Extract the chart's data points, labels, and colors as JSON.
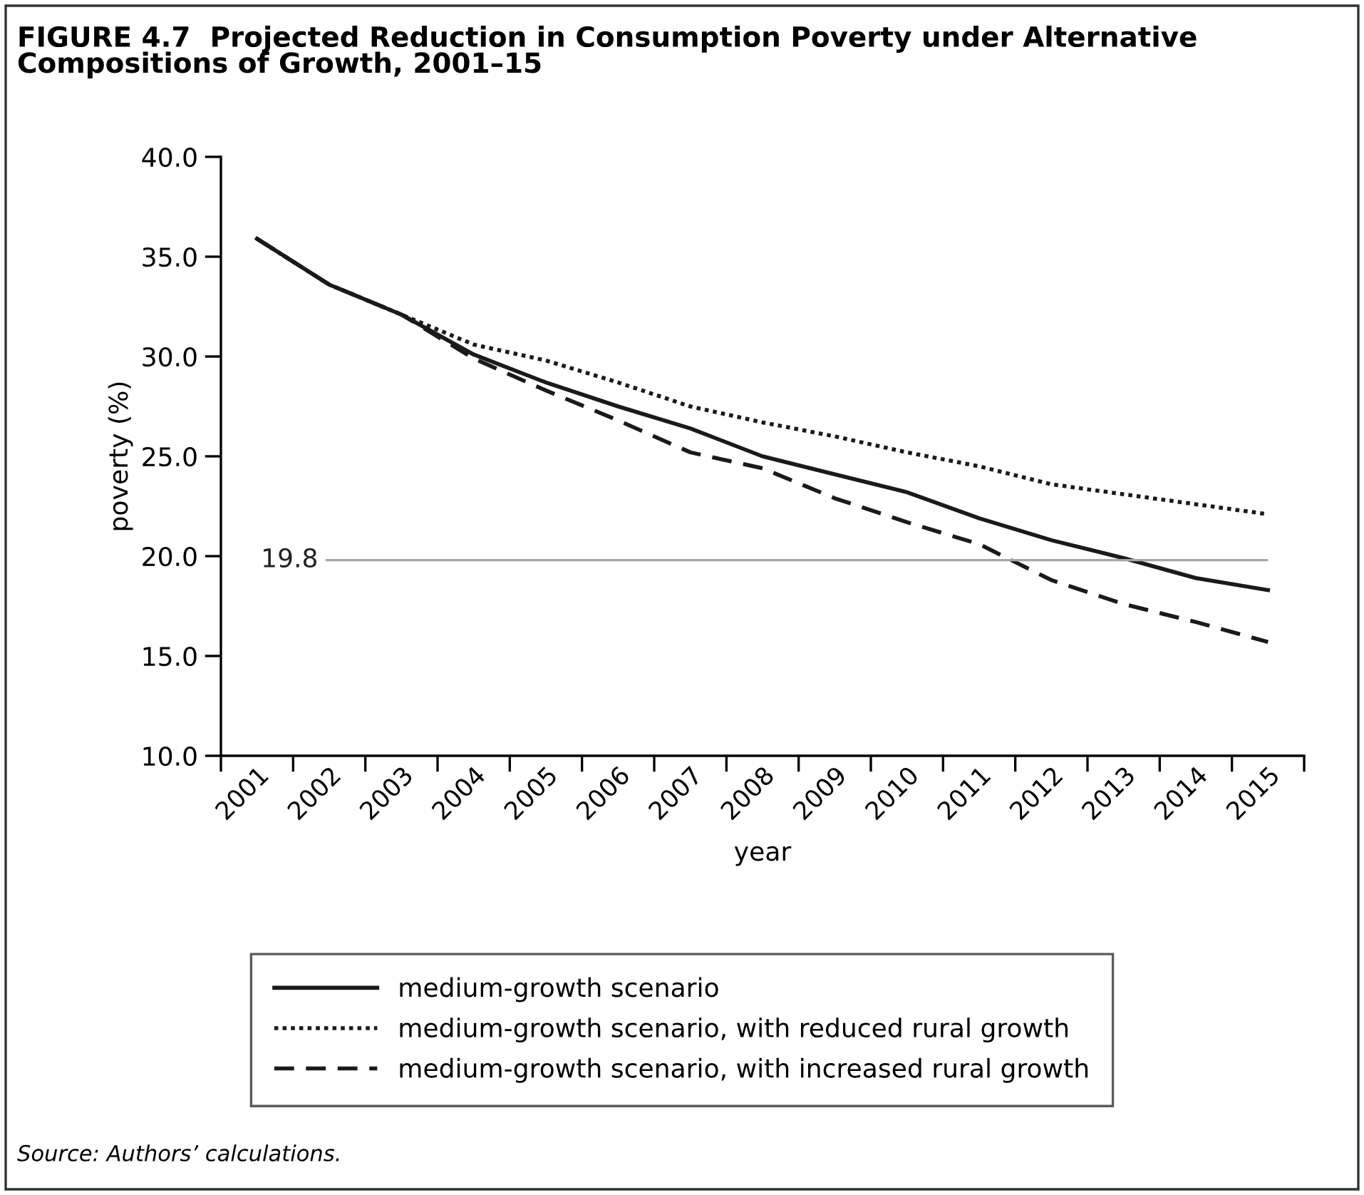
{
  "chart_data": {
    "type": "line",
    "title": "FIGURE 4.7  Projected Reduction in Consumption Poverty under Alternative\nCompositions of Growth, 2001–15",
    "xlabel": "year",
    "ylabel": "poverty (%)",
    "categories": [
      "2001",
      "2002",
      "2003",
      "2004",
      "2005",
      "2006",
      "2007",
      "2008",
      "2009",
      "2010",
      "2011",
      "2012",
      "2013",
      "2014",
      "2015"
    ],
    "series": [
      {
        "name": "medium-growth scenario",
        "color": "#1a1a1a",
        "line_style": "solid",
        "values": [
          35.9,
          33.6,
          32.1,
          30.1,
          28.7,
          27.5,
          26.4,
          25.0,
          24.1,
          23.2,
          21.9,
          20.8,
          19.9,
          18.9,
          18.3
        ]
      },
      {
        "name": "medium-growth scenario, with reduced rural growth",
        "color": "#1a1a1a",
        "line_style": "dotted",
        "values": [
          35.9,
          33.6,
          32.1,
          30.6,
          29.8,
          28.7,
          27.5,
          26.7,
          26.0,
          25.2,
          24.5,
          23.6,
          23.1,
          22.6,
          22.1
        ]
      },
      {
        "name": "medium-growth scenario, with increased rural growth",
        "color": "#1a1a1a",
        "line_style": "dashed",
        "values": [
          35.9,
          33.6,
          32.1,
          29.9,
          28.3,
          26.8,
          25.2,
          24.4,
          22.9,
          21.7,
          20.6,
          18.8,
          17.6,
          16.7,
          15.7
        ]
      }
    ],
    "ylim": [
      10,
      40
    ],
    "yticks": [
      {
        "value": 10,
        "label": "10.0"
      },
      {
        "value": 15,
        "label": "15.0"
      },
      {
        "value": 20,
        "label": "20.0"
      },
      {
        "value": 25,
        "label": "25.0"
      },
      {
        "value": 30,
        "label": "30.0"
      },
      {
        "value": 35,
        "label": "35.0"
      },
      {
        "value": 40,
        "label": "40.0"
      }
    ],
    "ref_lines": [
      {
        "axis": "y",
        "value": 19.8,
        "label": "19.8",
        "color": "#a6a6a6"
      }
    ],
    "legend": "bottom",
    "grid": false,
    "marker": "none",
    "annotations": [
      "Source: Authors’ calculations."
    ]
  }
}
